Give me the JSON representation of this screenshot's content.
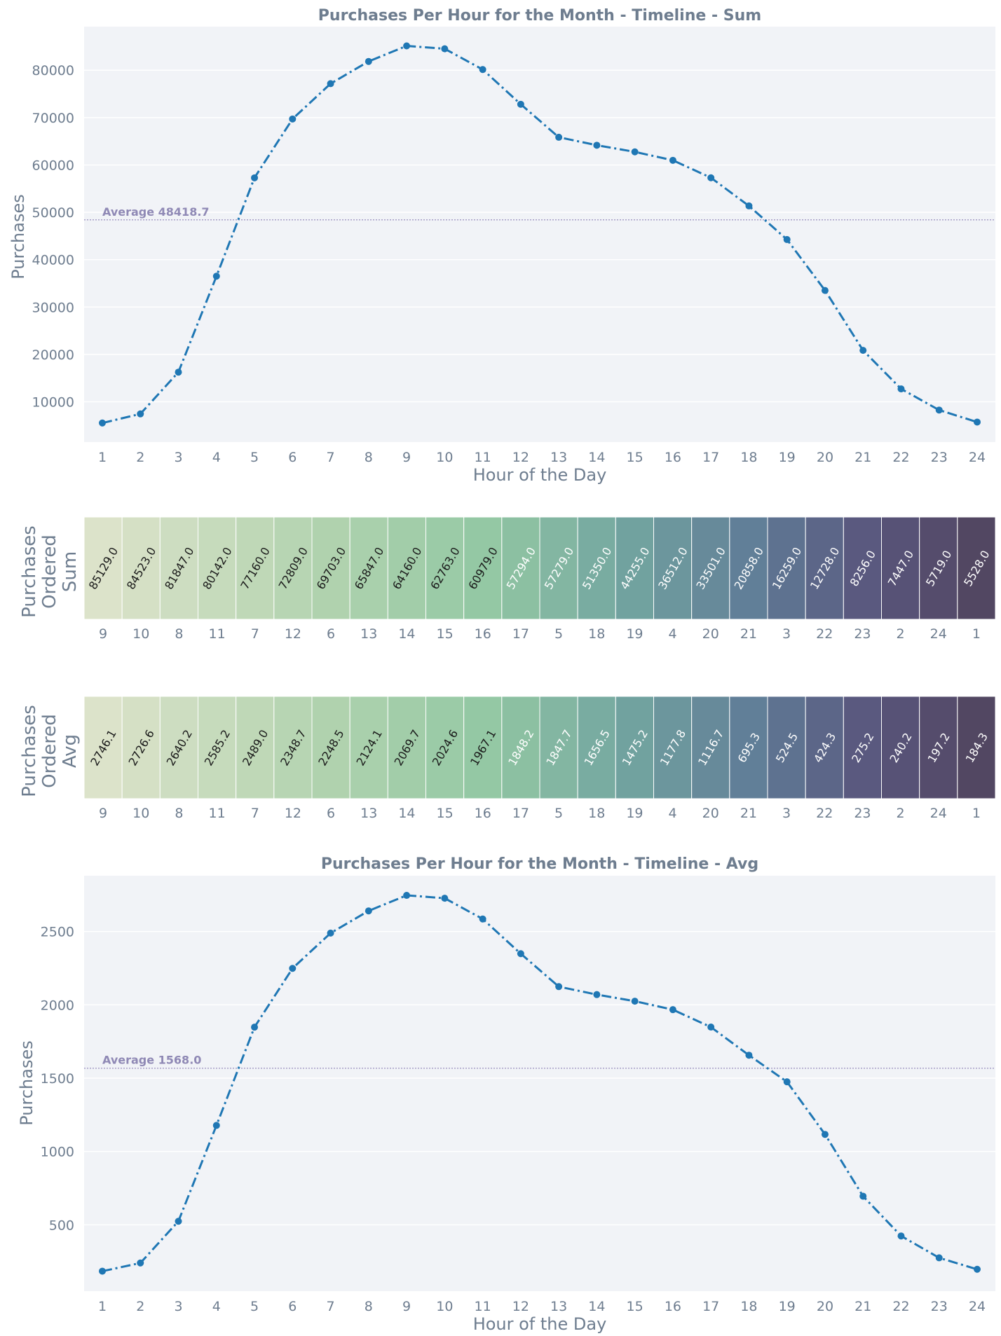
{
  "colors": {
    "plot_bg": "#f1f3f7",
    "line": "#1f77b4",
    "text": "#6e7d8f",
    "avg_line": "#a79fc7",
    "avg_text": "#8f89b5",
    "grid": "#ffffff"
  },
  "chart_data": [
    {
      "type": "line",
      "title": "Purchases Per Hour for the Month - Timeline - Sum",
      "xlabel": "Hour of the Day",
      "ylabel": "Purchases",
      "x": [
        1,
        2,
        3,
        4,
        5,
        6,
        7,
        8,
        9,
        10,
        11,
        12,
        13,
        14,
        15,
        16,
        17,
        18,
        19,
        20,
        21,
        22,
        23,
        24
      ],
      "values": [
        5528,
        7447,
        16259,
        36512,
        57279,
        69703,
        77160,
        81847,
        85129,
        84523,
        80142,
        72809,
        65847,
        64160,
        62763,
        60979,
        57294,
        51350,
        44255,
        33501,
        20858,
        12728,
        8256,
        5719
      ],
      "ylim": [
        1500,
        89200
      ],
      "yticks": [
        10000,
        20000,
        30000,
        40000,
        50000,
        60000,
        70000,
        80000
      ],
      "average": 48418.7,
      "average_label": "Average 48418.7",
      "grid": "horizontal"
    },
    {
      "type": "heatmap",
      "ylabel_line1": "Purchases",
      "ylabel_line2": "Ordered",
      "ylabel_line3": "Sum",
      "categories": [
        "9",
        "10",
        "8",
        "11",
        "7",
        "12",
        "6",
        "13",
        "14",
        "15",
        "16",
        "17",
        "5",
        "18",
        "19",
        "4",
        "20",
        "21",
        "3",
        "22",
        "23",
        "2",
        "24",
        "1"
      ],
      "labels": [
        "85129.0",
        "84523.0",
        "81847.0",
        "80142.0",
        "77160.0",
        "72809.0",
        "69703.0",
        "65847.0",
        "64160.0",
        "62763.0",
        "60979.0",
        "57294.0",
        "57279.0",
        "51350.0",
        "44255.0",
        "36512.0",
        "33501.0",
        "20858.0",
        "16259.0",
        "12728.0",
        "8256.0",
        "7447.0",
        "5719.0",
        "5528.0"
      ],
      "values": [
        85129,
        84523,
        81847,
        80142,
        77160,
        72809,
        69703,
        65847,
        64160,
        62763,
        60979,
        57294,
        57279,
        51350,
        44255,
        36512,
        33501,
        20858,
        16259,
        12728,
        8256,
        7447,
        5719,
        5528
      ]
    },
    {
      "type": "heatmap",
      "ylabel_line1": "Purchases",
      "ylabel_line2": "Ordered",
      "ylabel_line3": "Avg",
      "categories": [
        "9",
        "10",
        "8",
        "11",
        "7",
        "12",
        "6",
        "13",
        "14",
        "15",
        "16",
        "17",
        "5",
        "18",
        "19",
        "4",
        "20",
        "21",
        "3",
        "22",
        "23",
        "2",
        "24",
        "1"
      ],
      "labels": [
        "2746.1",
        "2726.6",
        "2640.2",
        "2585.2",
        "2489.0",
        "2348.7",
        "2248.5",
        "2124.1",
        "2069.7",
        "2024.6",
        "1967.1",
        "1848.2",
        "1847.7",
        "1656.5",
        "1475.2",
        "1177.8",
        "1116.7",
        "695.3",
        "524.5",
        "424.3",
        "275.2",
        "240.2",
        "197.2",
        "184.3"
      ],
      "values": [
        2746.1,
        2726.6,
        2640.2,
        2585.2,
        2489.0,
        2348.7,
        2248.5,
        2124.1,
        2069.7,
        2024.6,
        1967.1,
        1848.2,
        1847.7,
        1656.5,
        1475.2,
        1177.8,
        1116.7,
        695.3,
        524.5,
        424.3,
        275.2,
        240.2,
        197.2,
        184.3
      ]
    },
    {
      "type": "line",
      "title": "Purchases Per Hour for the Month - Timeline - Avg",
      "xlabel": "Hour of the Day",
      "ylabel": "Purchases",
      "x": [
        1,
        2,
        3,
        4,
        5,
        6,
        7,
        8,
        9,
        10,
        11,
        12,
        13,
        14,
        15,
        16,
        17,
        18,
        19,
        20,
        21,
        22,
        23,
        24
      ],
      "values": [
        184.3,
        240.2,
        524.5,
        1177.8,
        1847.7,
        2248.5,
        2489.0,
        2640.2,
        2746.1,
        2726.6,
        2585.2,
        2348.7,
        2124.1,
        2069.7,
        2024.6,
        1967.1,
        1848.2,
        1656.5,
        1475.2,
        1116.7,
        695.3,
        424.3,
        275.2,
        197.2
      ],
      "ylim": [
        48,
        2880
      ],
      "yticks": [
        500,
        1000,
        1500,
        2000,
        2500
      ],
      "average": 1568.0,
      "average_label": "Average 1568.0",
      "grid": "horizontal"
    }
  ]
}
